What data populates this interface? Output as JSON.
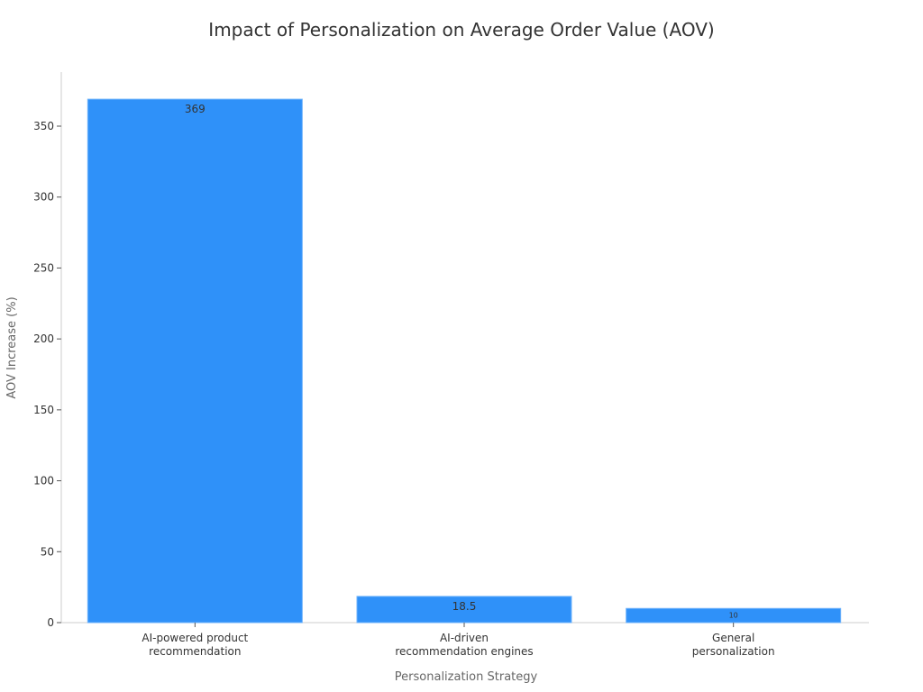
{
  "chart_data": {
    "type": "bar",
    "title": "Impact of Personalization on Average Order Value (AOV)",
    "xlabel": "Personalization Strategy",
    "ylabel": "AOV Increase (%)",
    "categories": [
      [
        "AI-powered product",
        "recommendation"
      ],
      [
        "AI-driven",
        "recommendation engines"
      ],
      [
        "General",
        "personalization"
      ]
    ],
    "values": [
      369,
      18.5,
      10
    ],
    "value_labels": [
      "369",
      "18.5",
      "10"
    ],
    "ylim": [
      0,
      390
    ],
    "yticks": [
      0,
      50,
      100,
      150,
      200,
      250,
      300,
      350
    ],
    "grid": false,
    "colors": {
      "bar": "#2f91f9",
      "bar_edge": "#6fb3fb",
      "text": "#333333",
      "axis": "#cccccc"
    }
  }
}
